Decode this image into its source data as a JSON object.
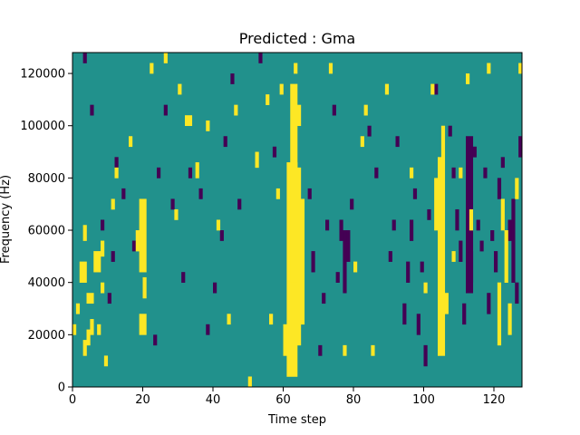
{
  "chart_data": {
    "type": "heatmap",
    "title": "Predicted : Gma",
    "xlabel": "Time step",
    "ylabel": "Frequency (Hz)",
    "xlim": [
      0,
      128
    ],
    "ylim": [
      0,
      128000
    ],
    "x_ticks": [
      0,
      20,
      40,
      60,
      80,
      100,
      120
    ],
    "y_ticks": [
      0,
      20000,
      40000,
      60000,
      80000,
      100000,
      120000
    ],
    "y_tick_labels": [
      "0",
      "20000",
      "40000",
      "60000",
      "80000",
      "100000",
      "120000"
    ],
    "n_time_steps": 128,
    "n_freq_bins": 64,
    "freq_bin_hz": 2000,
    "colormap": {
      "low": "#440154",
      "mid": "#21918c",
      "high": "#fde725"
    },
    "cells": {
      "background_level": "mid",
      "high": [
        [
          0,
          1,
          10,
          12
        ],
        [
          1,
          2,
          14,
          16
        ],
        [
          2,
          4,
          20,
          24
        ],
        [
          3,
          4,
          6,
          9
        ],
        [
          3,
          4,
          28,
          31
        ],
        [
          4,
          5,
          8,
          11
        ],
        [
          4,
          6,
          16,
          18
        ],
        [
          5,
          6,
          10,
          13
        ],
        [
          6,
          8,
          22,
          26
        ],
        [
          7,
          8,
          10,
          12
        ],
        [
          8,
          9,
          18,
          20
        ],
        [
          8,
          9,
          25,
          28
        ],
        [
          9,
          10,
          4,
          6
        ],
        [
          11,
          12,
          34,
          36
        ],
        [
          12,
          13,
          40,
          42
        ],
        [
          16,
          17,
          46,
          48
        ],
        [
          18,
          19,
          26,
          30
        ],
        [
          19,
          21,
          10,
          14
        ],
        [
          19,
          21,
          22,
          36
        ],
        [
          20,
          21,
          17,
          21
        ],
        [
          22,
          23,
          60,
          62
        ],
        [
          26,
          27,
          62,
          64
        ],
        [
          29,
          30,
          32,
          34
        ],
        [
          30,
          31,
          56,
          58
        ],
        [
          32,
          34,
          50,
          52
        ],
        [
          35,
          36,
          40,
          43
        ],
        [
          38,
          39,
          49,
          51
        ],
        [
          41,
          42,
          30,
          32
        ],
        [
          44,
          45,
          12,
          14
        ],
        [
          46,
          47,
          52,
          54
        ],
        [
          50,
          51,
          0,
          2
        ],
        [
          52,
          53,
          42,
          45
        ],
        [
          55,
          56,
          54,
          56
        ],
        [
          56,
          57,
          12,
          14
        ],
        [
          58,
          59,
          36,
          38
        ],
        [
          59,
          60,
          56,
          58
        ],
        [
          60,
          61,
          6,
          12
        ],
        [
          61,
          64,
          2,
          43
        ],
        [
          62,
          64,
          20,
          58
        ],
        [
          63,
          64,
          60,
          62
        ],
        [
          64,
          65,
          8,
          42
        ],
        [
          64,
          65,
          50,
          54
        ],
        [
          65,
          66,
          12,
          36
        ],
        [
          73,
          74,
          60,
          62
        ],
        [
          77,
          78,
          6,
          8
        ],
        [
          80,
          81,
          22,
          24
        ],
        [
          82,
          83,
          46,
          48
        ],
        [
          83,
          84,
          52,
          54
        ],
        [
          85,
          86,
          6,
          8
        ],
        [
          89,
          90,
          56,
          58
        ],
        [
          96,
          97,
          40,
          42
        ],
        [
          100,
          101,
          18,
          20
        ],
        [
          102,
          103,
          56,
          58
        ],
        [
          103,
          104,
          30,
          40
        ],
        [
          104,
          106,
          6,
          44
        ],
        [
          105,
          106,
          44,
          50
        ],
        [
          106,
          107,
          14,
          18
        ],
        [
          108,
          109,
          24,
          26
        ],
        [
          110,
          111,
          40,
          42
        ],
        [
          112,
          113,
          58,
          60
        ],
        [
          113,
          114,
          30,
          34
        ],
        [
          118,
          119,
          60,
          62
        ],
        [
          121,
          122,
          8,
          20
        ],
        [
          122,
          123,
          30,
          36
        ],
        [
          123,
          124,
          20,
          30
        ],
        [
          124,
          125,
          10,
          16
        ],
        [
          126,
          127,
          36,
          40
        ],
        [
          127,
          128,
          60,
          62
        ]
      ],
      "low": [
        [
          3,
          4,
          62,
          64
        ],
        [
          5,
          6,
          52,
          54
        ],
        [
          8,
          9,
          30,
          32
        ],
        [
          10,
          11,
          16,
          18
        ],
        [
          11,
          12,
          24,
          26
        ],
        [
          12,
          13,
          42,
          44
        ],
        [
          14,
          15,
          36,
          38
        ],
        [
          17,
          18,
          26,
          28
        ],
        [
          23,
          24,
          8,
          10
        ],
        [
          24,
          25,
          40,
          42
        ],
        [
          26,
          27,
          52,
          54
        ],
        [
          28,
          29,
          34,
          36
        ],
        [
          31,
          32,
          20,
          22
        ],
        [
          33,
          34,
          40,
          42
        ],
        [
          36,
          37,
          36,
          38
        ],
        [
          38,
          39,
          10,
          12
        ],
        [
          40,
          41,
          18,
          20
        ],
        [
          42,
          43,
          28,
          30
        ],
        [
          43,
          44,
          46,
          48
        ],
        [
          45,
          46,
          58,
          60
        ],
        [
          47,
          48,
          34,
          36
        ],
        [
          53,
          54,
          62,
          64
        ],
        [
          57,
          58,
          44,
          46
        ],
        [
          67,
          68,
          36,
          38
        ],
        [
          68,
          69,
          22,
          26
        ],
        [
          70,
          71,
          6,
          8
        ],
        [
          71,
          72,
          16,
          18
        ],
        [
          72,
          73,
          30,
          32
        ],
        [
          74,
          75,
          52,
          54
        ],
        [
          75,
          76,
          20,
          22
        ],
        [
          76,
          77,
          28,
          32
        ],
        [
          77,
          78,
          18,
          30
        ],
        [
          78,
          79,
          24,
          30
        ],
        [
          79,
          80,
          34,
          36
        ],
        [
          84,
          85,
          48,
          50
        ],
        [
          86,
          87,
          40,
          42
        ],
        [
          90,
          91,
          24,
          26
        ],
        [
          91,
          92,
          30,
          32
        ],
        [
          92,
          93,
          46,
          48
        ],
        [
          94,
          95,
          12,
          16
        ],
        [
          95,
          96,
          20,
          24
        ],
        [
          96,
          97,
          28,
          32
        ],
        [
          97,
          98,
          36,
          38
        ],
        [
          98,
          99,
          10,
          14
        ],
        [
          99,
          100,
          22,
          24
        ],
        [
          100,
          101,
          4,
          8
        ],
        [
          101,
          102,
          32,
          34
        ],
        [
          103,
          104,
          56,
          58
        ],
        [
          107,
          108,
          48,
          50
        ],
        [
          108,
          109,
          40,
          42
        ],
        [
          109,
          110,
          30,
          34
        ],
        [
          110,
          111,
          24,
          28
        ],
        [
          111,
          112,
          12,
          16
        ],
        [
          112,
          114,
          18,
          48
        ],
        [
          113,
          114,
          20,
          26
        ],
        [
          114,
          115,
          44,
          46
        ],
        [
          115,
          116,
          30,
          32
        ],
        [
          116,
          117,
          26,
          28
        ],
        [
          117,
          118,
          40,
          42
        ],
        [
          118,
          119,
          14,
          18
        ],
        [
          119,
          120,
          28,
          30
        ],
        [
          120,
          121,
          22,
          26
        ],
        [
          121,
          122,
          36,
          40
        ],
        [
          122,
          123,
          42,
          44
        ],
        [
          124,
          125,
          28,
          32
        ],
        [
          125,
          126,
          20,
          36
        ],
        [
          126,
          127,
          16,
          20
        ],
        [
          127,
          128,
          44,
          48
        ]
      ]
    }
  }
}
